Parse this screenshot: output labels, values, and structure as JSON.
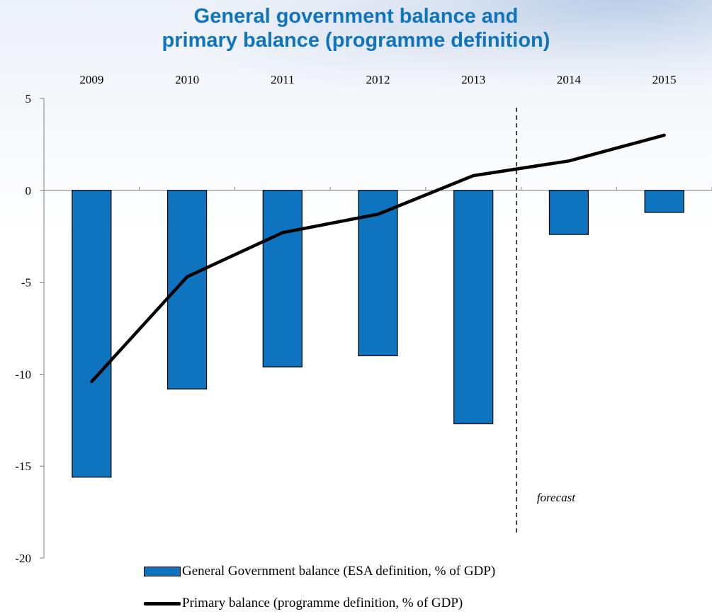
{
  "chart_data": {
    "type": "bar",
    "title_lines": [
      "General government balance and",
      "primary balance (programme definition)"
    ],
    "categories": [
      "2009",
      "2010",
      "2011",
      "2012",
      "2013",
      "2014",
      "2015"
    ],
    "series": [
      {
        "name": "General Government balance (ESA definition, % of GDP)",
        "type": "bar",
        "color": "#0f74c0",
        "values": [
          -15.6,
          -10.8,
          -9.6,
          -9.0,
          -12.7,
          -2.4,
          -1.2
        ]
      },
      {
        "name": "Primary balance (programme definition, % of GDP)",
        "type": "line",
        "color": "#000000",
        "values": [
          -10.4,
          -4.7,
          -2.3,
          -1.3,
          0.8,
          1.6,
          3.0
        ]
      }
    ],
    "ylim": [
      -20,
      5
    ],
    "yticks": [
      5,
      0,
      -5,
      -10,
      -15,
      -20
    ],
    "forecast_label": "forecast",
    "forecast_divider_after": "2013",
    "legend_position": "bottom",
    "grid": false
  }
}
